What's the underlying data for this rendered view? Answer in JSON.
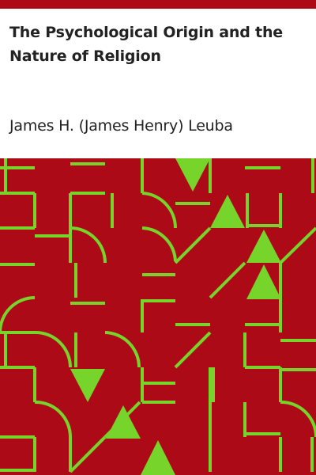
{
  "book": {
    "title": "The Psychological Origin and the Nature of Religion",
    "author": "James H. (James Henry) Leuba"
  },
  "colors": {
    "top_bar": "#ad0a17",
    "background": "#ad0a17",
    "pattern_stroke": "#77d42a",
    "text": "#222222"
  }
}
